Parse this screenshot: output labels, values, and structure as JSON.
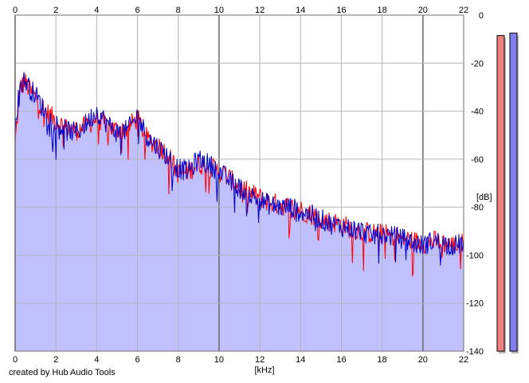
{
  "app": {
    "credit": "created by Hub Audio Tools"
  },
  "colors": {
    "plot_background": "#ffffff",
    "grid_major": "#707070",
    "grid_minor": "#b4b4b4",
    "area_fill": "#c0c0ff",
    "left_channel": "#ff0000",
    "right_channel": "#0000cc",
    "meter_left": "#f08080",
    "meter_right": "#8080f0"
  },
  "chart_data": {
    "type": "line",
    "title": "",
    "xlabel": "[kHz]",
    "ylabel": "[dB]",
    "xlim": [
      0,
      22
    ],
    "ylim": [
      -140,
      0
    ],
    "x_ticks": [
      0,
      2,
      4,
      6,
      8,
      10,
      12,
      14,
      16,
      18,
      20,
      22
    ],
    "x_tick_labels": [
      "0",
      "2",
      "4",
      "6",
      "8",
      "10",
      "12",
      "14",
      "16",
      "18",
      "20",
      "22"
    ],
    "y_ticks": [
      0,
      -20,
      -40,
      -60,
      -80,
      -100,
      -120,
      -140
    ],
    "y_tick_labels": [
      "0",
      "-20",
      "-40",
      "-60",
      "-80",
      "-100",
      "-120",
      "-140"
    ],
    "grid": true,
    "x": [
      0,
      0.25,
      0.5,
      0.75,
      1.0,
      1.5,
      2.0,
      2.5,
      3.0,
      3.5,
      4.0,
      4.5,
      5.0,
      5.5,
      6.0,
      6.5,
      7.0,
      7.5,
      8.0,
      8.5,
      9.0,
      9.5,
      10.0,
      10.5,
      11.0,
      11.5,
      12.0,
      12.5,
      13.0,
      13.5,
      14.0,
      14.5,
      15.0,
      15.5,
      16.0,
      16.5,
      17.0,
      17.5,
      18.0,
      18.5,
      19.0,
      19.5,
      20.0,
      20.5,
      21.0,
      21.5,
      22.0
    ],
    "series": [
      {
        "channel": "left",
        "values": [
          -53,
          -30,
          -28,
          -32,
          -34,
          -40,
          -44,
          -47,
          -48,
          -46,
          -43,
          -46,
          -48,
          -47,
          -43,
          -52,
          -54,
          -58,
          -66,
          -65,
          -62,
          -63,
          -65,
          -68,
          -72,
          -74,
          -76,
          -78,
          -79,
          -80,
          -81,
          -83,
          -85,
          -86,
          -87,
          -89,
          -90,
          -91,
          -91,
          -92,
          -93,
          -94,
          -95,
          -94,
          -95,
          -96,
          -95
        ]
      },
      {
        "channel": "right",
        "values": [
          -45,
          -29,
          -27,
          -31,
          -33,
          -41,
          -45,
          -48,
          -49,
          -45,
          -40,
          -45,
          -49,
          -48,
          -42,
          -51,
          -55,
          -59,
          -64,
          -65,
          -60,
          -62,
          -65,
          -69,
          -72,
          -75,
          -77,
          -79,
          -80,
          -80,
          -82,
          -83,
          -85,
          -87,
          -88,
          -89,
          -90,
          -92,
          -91,
          -92,
          -93,
          -95,
          -96,
          -94,
          -95,
          -96,
          -95
        ]
      }
    ]
  },
  "level_meters": {
    "left": -8.5,
    "right": -7.5
  }
}
